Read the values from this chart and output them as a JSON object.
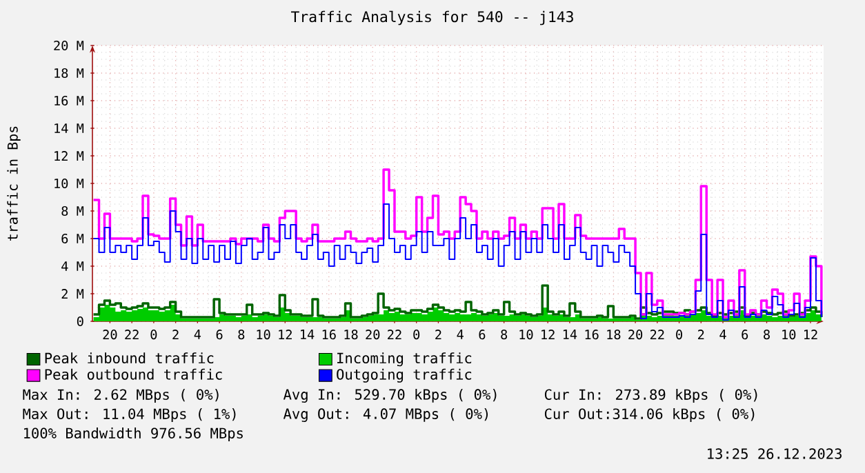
{
  "chart_data": {
    "type": "step",
    "title": "Traffic Analysis for 540 -- j143",
    "ylabel": "traffic in Bps",
    "x": [
      "2023-12-23T18:30",
      "2023-12-23T19:00",
      "2023-12-23T19:30",
      "2023-12-23T20:00",
      "2023-12-23T20:30",
      "2023-12-23T21:00",
      "2023-12-23T21:30",
      "2023-12-23T22:00",
      "2023-12-23T22:30",
      "2023-12-23T23:00",
      "2023-12-23T23:30",
      "2023-12-24T00:00",
      "2023-12-24T00:30",
      "2023-12-24T01:00",
      "2023-12-24T01:30",
      "2023-12-24T02:00",
      "2023-12-24T02:30",
      "2023-12-24T03:00",
      "2023-12-24T03:30",
      "2023-12-24T04:00",
      "2023-12-24T04:30",
      "2023-12-24T05:00",
      "2023-12-24T05:30",
      "2023-12-24T06:00",
      "2023-12-24T06:30",
      "2023-12-24T07:00",
      "2023-12-24T07:30",
      "2023-12-24T08:00",
      "2023-12-24T08:30",
      "2023-12-24T09:00",
      "2023-12-24T09:30",
      "2023-12-24T10:00",
      "2023-12-24T10:30",
      "2023-12-24T11:00",
      "2023-12-24T11:30",
      "2023-12-24T12:00",
      "2023-12-24T12:30",
      "2023-12-24T13:00",
      "2023-12-24T13:30",
      "2023-12-24T14:00",
      "2023-12-24T14:30",
      "2023-12-24T15:00",
      "2023-12-24T15:30",
      "2023-12-24T16:00",
      "2023-12-24T16:30",
      "2023-12-24T17:00",
      "2023-12-24T17:30",
      "2023-12-24T18:00",
      "2023-12-24T18:30",
      "2023-12-24T19:00",
      "2023-12-24T19:30",
      "2023-12-24T20:00",
      "2023-12-24T20:30",
      "2023-12-24T21:00",
      "2023-12-24T21:30",
      "2023-12-24T22:00",
      "2023-12-24T22:30",
      "2023-12-24T23:00",
      "2023-12-24T23:30",
      "2023-12-25T00:00",
      "2023-12-25T00:30",
      "2023-12-25T01:00",
      "2023-12-25T01:30",
      "2023-12-25T02:00",
      "2023-12-25T02:30",
      "2023-12-25T03:00",
      "2023-12-25T03:30",
      "2023-12-25T04:00",
      "2023-12-25T04:30",
      "2023-12-25T05:00",
      "2023-12-25T05:30",
      "2023-12-25T06:00",
      "2023-12-25T06:30",
      "2023-12-25T07:00",
      "2023-12-25T07:30",
      "2023-12-25T08:00",
      "2023-12-25T08:30",
      "2023-12-25T09:00",
      "2023-12-25T09:30",
      "2023-12-25T10:00",
      "2023-12-25T10:30",
      "2023-12-25T11:00",
      "2023-12-25T11:30",
      "2023-12-25T12:00",
      "2023-12-25T12:30",
      "2023-12-25T13:00",
      "2023-12-25T13:30",
      "2023-12-25T14:00",
      "2023-12-25T14:30",
      "2023-12-25T15:00",
      "2023-12-25T15:30",
      "2023-12-25T16:00",
      "2023-12-25T16:30",
      "2023-12-25T17:00",
      "2023-12-25T17:30",
      "2023-12-25T18:00",
      "2023-12-25T18:30",
      "2023-12-25T19:00",
      "2023-12-25T19:30",
      "2023-12-25T20:00",
      "2023-12-25T20:30",
      "2023-12-25T21:00",
      "2023-12-25T21:30",
      "2023-12-25T22:00",
      "2023-12-25T22:30",
      "2023-12-25T23:00",
      "2023-12-25T23:30",
      "2023-12-26T00:00",
      "2023-12-26T00:30",
      "2023-12-26T01:00",
      "2023-12-26T01:30",
      "2023-12-26T02:00",
      "2023-12-26T02:30",
      "2023-12-26T03:00",
      "2023-12-26T03:30",
      "2023-12-26T04:00",
      "2023-12-26T04:30",
      "2023-12-26T05:00",
      "2023-12-26T05:30",
      "2023-12-26T06:00",
      "2023-12-26T06:30",
      "2023-12-26T07:00",
      "2023-12-26T07:30",
      "2023-12-26T08:00",
      "2023-12-26T08:30",
      "2023-12-26T09:00",
      "2023-12-26T09:30",
      "2023-12-26T10:00",
      "2023-12-26T10:30",
      "2023-12-26T11:00",
      "2023-12-26T11:30",
      "2023-12-26T12:00",
      "2023-12-26T12:30",
      "2023-12-26T13:00"
    ],
    "series": [
      {
        "name": "Peak inbound traffic",
        "color": "#006400",
        "values": [
          0.5,
          1.2,
          1.5,
          1.2,
          1.3,
          1,
          0.9,
          1,
          1.1,
          1.3,
          1,
          1,
          0.9,
          1,
          1.4,
          0.7,
          0.3,
          0.3,
          0.3,
          0.3,
          0.3,
          0.3,
          1.6,
          0.6,
          0.5,
          0.5,
          0.5,
          0.5,
          1.2,
          0.5,
          0.5,
          0.6,
          0.5,
          0.4,
          1.9,
          0.8,
          0.5,
          0.5,
          0.4,
          0.4,
          1.6,
          0.4,
          0.3,
          0.3,
          0.3,
          0.4,
          1.3,
          0.3,
          0.3,
          0.4,
          0.5,
          0.6,
          2,
          1,
          0.8,
          0.9,
          0.7,
          0.6,
          0.8,
          0.8,
          0.7,
          0.9,
          1.2,
          1,
          0.8,
          0.7,
          0.8,
          0.7,
          1.4,
          0.8,
          0.7,
          0.5,
          0.6,
          0.8,
          0.5,
          1.4,
          0.7,
          0.5,
          0.6,
          0.5,
          0.4,
          0.5,
          2.6,
          0.7,
          0.5,
          0.7,
          0.4,
          1.3,
          0.7,
          0.3,
          0.3,
          0.3,
          0.4,
          0.3,
          1.1,
          0.3,
          0.3,
          0.3,
          0.4,
          0.2,
          1,
          0.6,
          0.5,
          0.6,
          0.7,
          0.7,
          0.6,
          0.6,
          0.8,
          0.7,
          0.8,
          1,
          0.6,
          0.4,
          0.6,
          0.5,
          0.6,
          0.7,
          1,
          0.4,
          0.6,
          0.5,
          0.7,
          0.6,
          0.5,
          0.6,
          0.7,
          0.4,
          0.5,
          0.6,
          0.8,
          1,
          0.7,
          0.3
        ]
      },
      {
        "name": "Incoming traffic",
        "color": "#00cc00",
        "type": "area",
        "values": [
          0.3,
          1,
          1.2,
          1,
          0.7,
          0.8,
          0.7,
          0.8,
          0.9,
          1,
          0.8,
          0.8,
          0.7,
          0.8,
          1.2,
          0.5,
          0.2,
          0.2,
          0.2,
          0.2,
          0.2,
          0.2,
          0.3,
          0.5,
          0.4,
          0.4,
          0.3,
          0.4,
          0.5,
          0.3,
          0.4,
          0.5,
          0.4,
          0.3,
          1,
          0.6,
          0.4,
          0.4,
          0.3,
          0.3,
          0.3,
          0.3,
          0.2,
          0.2,
          0.2,
          0.3,
          0.8,
          0.2,
          0.2,
          0.3,
          0.4,
          0.5,
          0.5,
          0.8,
          0.6,
          0.7,
          0.5,
          0.5,
          0.6,
          0.6,
          0.5,
          0.7,
          1,
          0.8,
          0.6,
          0.5,
          0.6,
          0.5,
          0.5,
          0.6,
          0.5,
          0.4,
          0.5,
          0.6,
          0.4,
          0.4,
          0.5,
          0.4,
          0.5,
          0.4,
          0.3,
          0.4,
          1,
          0.5,
          0.4,
          0.5,
          0.3,
          0.3,
          0.5,
          0.2,
          0.2,
          0.2,
          0.3,
          0.2,
          0.2,
          0.2,
          0.2,
          0.2,
          0.3,
          0.1,
          0.6,
          0.4,
          0.3,
          0.4,
          0.5,
          0.5,
          0.4,
          0.4,
          0.6,
          0.5,
          0.6,
          0.8,
          0.4,
          0.3,
          0.4,
          0.3,
          0.4,
          0.5,
          0.8,
          0.3,
          0.4,
          0.4,
          0.5,
          0.4,
          0.3,
          0.4,
          0.5,
          0.3,
          0.4,
          0.4,
          0.6,
          0.8,
          0.5,
          0.2
        ]
      },
      {
        "name": "Peak outbound traffic",
        "color": "#ff00ff",
        "values": [
          8.8,
          6,
          7.8,
          6,
          6,
          6,
          6,
          5.8,
          6,
          9.1,
          6.3,
          6.2,
          6,
          6,
          8.9,
          7,
          5.5,
          7.6,
          5.5,
          7,
          5.8,
          5.8,
          5.8,
          5.8,
          5.8,
          6,
          5.6,
          6,
          6,
          6,
          5.8,
          7,
          6,
          5.8,
          7.5,
          8,
          8,
          6,
          5.8,
          6,
          7,
          5.8,
          5.8,
          5.8,
          6,
          6,
          6.5,
          6,
          5.8,
          5.8,
          6,
          5.8,
          6,
          11,
          9.5,
          6.5,
          6.5,
          6,
          6.2,
          9,
          6.5,
          7.5,
          9.1,
          6.3,
          6.5,
          6,
          6.5,
          9,
          8.5,
          8,
          6,
          6.5,
          6,
          6.5,
          6,
          6.2,
          7.5,
          6,
          7,
          6,
          6.5,
          6,
          8.2,
          8.2,
          6,
          8.5,
          6,
          6,
          7.7,
          6.2,
          6,
          6,
          6,
          6,
          6,
          6,
          6.7,
          6,
          6,
          3.5,
          0.5,
          3.5,
          1.2,
          1.5,
          0.5,
          0.5,
          0.5,
          0.6,
          0.5,
          0.7,
          3,
          9.8,
          3,
          0.5,
          3,
          0.3,
          1.5,
          0.5,
          3.7,
          0.5,
          0.8,
          0.5,
          1.5,
          1,
          2.3,
          2,
          0.5,
          0.8,
          2,
          0.5,
          1.5,
          4.7,
          4,
          0.5
        ]
      },
      {
        "name": "Outgoing traffic",
        "color": "#0000ff",
        "values": [
          6,
          5,
          6.8,
          5,
          5.5,
          5,
          5.5,
          4.5,
          5.5,
          7.5,
          5.5,
          5.8,
          5,
          4.3,
          8,
          6.5,
          4.5,
          6,
          4.2,
          6,
          4.5,
          5.5,
          4.3,
          5.5,
          4.5,
          5.8,
          4.2,
          5.5,
          6,
          4.5,
          5,
          6.8,
          4.5,
          5,
          7,
          6,
          7,
          5,
          4.5,
          5.5,
          6.3,
          4.5,
          5,
          4,
          5.5,
          4.5,
          5.5,
          5,
          4.2,
          5,
          5.3,
          4.3,
          5.5,
          8.5,
          6,
          5,
          5.5,
          4.5,
          5.5,
          6.5,
          5,
          6.5,
          5.5,
          5.5,
          6,
          4.5,
          6,
          7.5,
          6,
          7,
          5,
          5.5,
          4.5,
          6,
          4,
          5.5,
          6.5,
          4.5,
          6.5,
          5,
          6,
          5,
          7,
          6,
          5,
          7,
          4.5,
          5.5,
          6.8,
          5,
          4.5,
          5.5,
          4,
          5.5,
          5,
          4.3,
          5.5,
          5,
          4,
          2,
          0.2,
          2,
          0.7,
          1,
          0.3,
          0.3,
          0.3,
          0.4,
          0.3,
          0.5,
          2.2,
          6.3,
          0.5,
          0.3,
          1.5,
          0.1,
          0.8,
          0.3,
          2.5,
          0.3,
          0.5,
          0.3,
          0.8,
          0.5,
          1.8,
          1.2,
          0.3,
          0.5,
          1.3,
          0.3,
          1,
          4.6,
          1.5,
          0.3
        ]
      }
    ],
    "xlim": [
      "2023-12-23T18:24",
      "2023-12-26T13:12"
    ],
    "ylim": [
      0,
      20
    ],
    "xticks": [
      {
        "value": "2023-12-23T20:00",
        "label": "20"
      },
      {
        "value": "2023-12-23T22:00",
        "label": "22"
      },
      {
        "value": "2023-12-24T00:00",
        "label": "0"
      },
      {
        "value": "2023-12-24T02:00",
        "label": "2"
      },
      {
        "value": "2023-12-24T04:00",
        "label": "4"
      },
      {
        "value": "2023-12-24T06:00",
        "label": "6"
      },
      {
        "value": "2023-12-24T08:00",
        "label": "8"
      },
      {
        "value": "2023-12-24T10:00",
        "label": "10"
      },
      {
        "value": "2023-12-24T12:00",
        "label": "12"
      },
      {
        "value": "2023-12-24T14:00",
        "label": "14"
      },
      {
        "value": "2023-12-24T16:00",
        "label": "16"
      },
      {
        "value": "2023-12-24T18:00",
        "label": "18"
      },
      {
        "value": "2023-12-24T20:00",
        "label": "20"
      },
      {
        "value": "2023-12-24T22:00",
        "label": "22"
      },
      {
        "value": "2023-12-25T00:00",
        "label": "0"
      },
      {
        "value": "2023-12-25T02:00",
        "label": "2"
      },
      {
        "value": "2023-12-25T04:00",
        "label": "4"
      },
      {
        "value": "2023-12-25T06:00",
        "label": "6"
      },
      {
        "value": "2023-12-25T08:00",
        "label": "8"
      },
      {
        "value": "2023-12-25T10:00",
        "label": "10"
      },
      {
        "value": "2023-12-25T12:00",
        "label": "12"
      },
      {
        "value": "2023-12-25T14:00",
        "label": "14"
      },
      {
        "value": "2023-12-25T16:00",
        "label": "16"
      },
      {
        "value": "2023-12-25T18:00",
        "label": "18"
      },
      {
        "value": "2023-12-25T20:00",
        "label": "20"
      },
      {
        "value": "2023-12-25T22:00",
        "label": "22"
      },
      {
        "value": "2023-12-26T00:00",
        "label": "0"
      },
      {
        "value": "2023-12-26T02:00",
        "label": "2"
      },
      {
        "value": "2023-12-26T04:00",
        "label": "4"
      },
      {
        "value": "2023-12-26T06:00",
        "label": "6"
      },
      {
        "value": "2023-12-26T08:00",
        "label": "8"
      },
      {
        "value": "2023-12-26T10:00",
        "label": "10"
      },
      {
        "value": "2023-12-26T12:00",
        "label": "12"
      }
    ],
    "yticks": [
      0,
      {
        "value": 2,
        "label": "2 M"
      },
      {
        "value": 4,
        "label": "4 M"
      },
      {
        "value": 6,
        "label": "6 M"
      },
      {
        "value": 8,
        "label": "8 M"
      },
      {
        "value": 10,
        "label": "10 M"
      },
      {
        "value": 12,
        "label": "12 M"
      },
      {
        "value": 14,
        "label": "14 M"
      },
      {
        "value": 16,
        "label": "16 M"
      },
      {
        "value": 18,
        "label": "18 M"
      },
      {
        "value": 20,
        "label": "20 M"
      }
    ],
    "grid": true,
    "legend": "bottom",
    "annotations": [
      "Max In: 2.62 MBps ( 0%)",
      "Avg In: 529.70 kBps ( 0%)",
      "Cur In: 273.89 kBps ( 0%)",
      "Max Out: 11.04 MBps ( 1%)",
      "Avg Out: 4.07 MBps ( 0%)",
      "Cur Out:314.06 kBps ( 0%)",
      "100% Bandwidth 976.56 MBps",
      "13:25 26.12.2023"
    ]
  }
}
